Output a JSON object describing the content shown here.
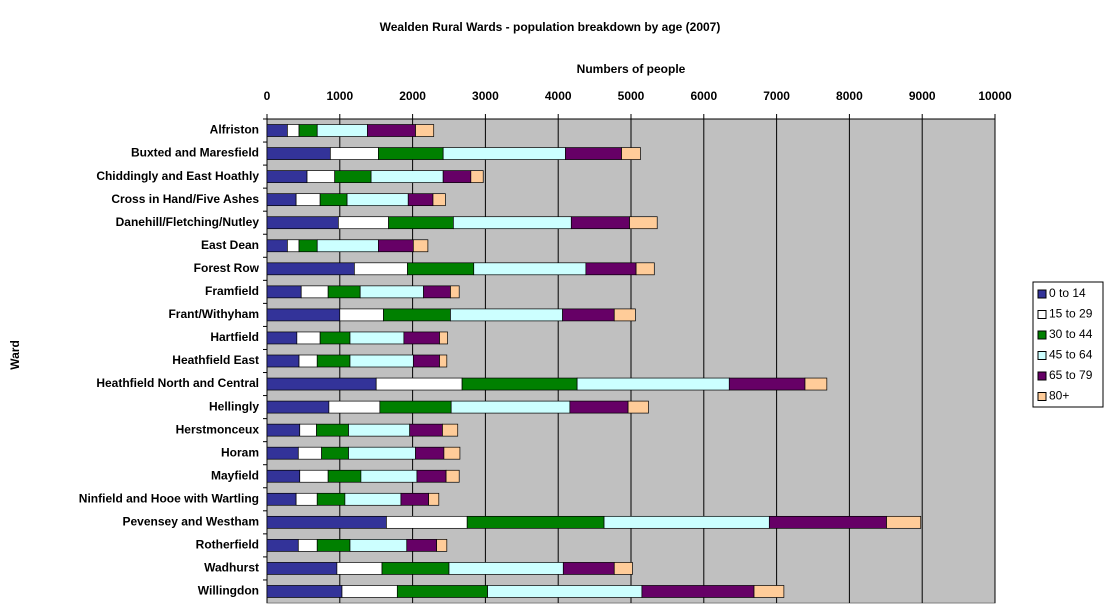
{
  "chart_data": {
    "type": "stacked_barh",
    "title": "Wealden Rural Wards - population breakdown by age (2007)",
    "x_label": "Numbers of people",
    "y_label": "Ward",
    "categories": [
      "Alfriston",
      "Buxted and Maresfield",
      "Chiddingly and East Hoathly",
      "Cross in Hand/Five Ashes",
      "Danehill/Fletching/Nutley",
      "East Dean",
      "Forest Row",
      "Framfield",
      "Frant/Withyham",
      "Hartfield",
      "Heathfield East",
      "Heathfield North and Central",
      "Hellingly",
      "Herstmonceux",
      "Horam",
      "Mayfield",
      "Ninfield and Hooe with Wartling",
      "Pevensey and Westham",
      "Rotherfield",
      "Wadhurst",
      "Willingdon"
    ],
    "series": [
      {
        "name": "0 to 14",
        "color": "#333399",
        "values": [
          280,
          870,
          550,
          400,
          980,
          280,
          1200,
          470,
          1000,
          410,
          440,
          1500,
          850,
          450,
          430,
          450,
          400,
          1640,
          430,
          960,
          1030
        ]
      },
      {
        "name": "15 to 29",
        "color": "#ffffff",
        "values": [
          160,
          660,
          380,
          330,
          690,
          160,
          730,
          370,
          600,
          320,
          250,
          1180,
          700,
          230,
          320,
          390,
          290,
          1110,
          260,
          620,
          760
        ]
      },
      {
        "name": "30 to 44",
        "color": "#008000",
        "values": [
          250,
          890,
          500,
          370,
          890,
          250,
          910,
          440,
          920,
          410,
          450,
          1580,
          980,
          440,
          370,
          450,
          380,
          1880,
          450,
          920,
          1240
        ]
      },
      {
        "name": "45 to 64",
        "color": "#ccffff",
        "values": [
          690,
          1680,
          990,
          840,
          1620,
          840,
          1540,
          870,
          1540,
          740,
          870,
          2090,
          1630,
          840,
          920,
          770,
          770,
          2270,
          780,
          1570,
          2120
        ]
      },
      {
        "name": "65 to 79",
        "color": "#660066",
        "values": [
          660,
          770,
          380,
          340,
          800,
          480,
          690,
          370,
          710,
          490,
          360,
          1040,
          800,
          450,
          390,
          400,
          380,
          1610,
          410,
          700,
          1540
        ]
      },
      {
        "name": "80+",
        "color": "#ffcc99",
        "values": [
          250,
          260,
          170,
          170,
          380,
          200,
          250,
          120,
          290,
          110,
          100,
          300,
          280,
          210,
          220,
          180,
          140,
          470,
          140,
          250,
          410
        ]
      }
    ],
    "xlim": [
      0,
      10000
    ],
    "xticks": [
      0,
      1000,
      2000,
      3000,
      4000,
      5000,
      6000,
      7000,
      8000,
      9000,
      10000
    ],
    "grid": true,
    "legend": "right",
    "background": "#c0c0c0"
  }
}
